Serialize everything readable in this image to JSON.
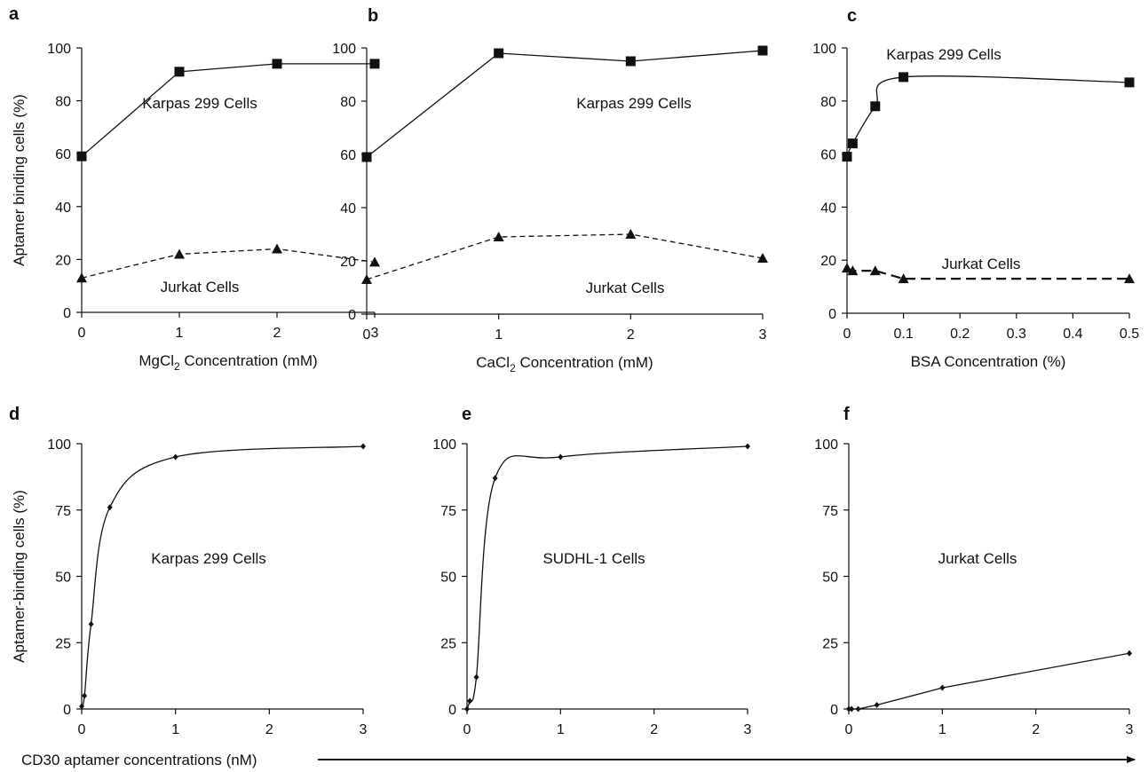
{
  "chart_data": [
    {
      "panel": "a",
      "type": "line",
      "x": [
        0,
        1,
        2,
        3
      ],
      "series": [
        {
          "name": "Karpas 299 Cells",
          "values": [
            59,
            91,
            94,
            94
          ],
          "marker": "square",
          "dash": false
        },
        {
          "name": "Jurkat Cells",
          "values": [
            13,
            22,
            24,
            19
          ],
          "marker": "triangle",
          "dash": true
        }
      ],
      "xlabel_prefix": "MgCl",
      "xlabel_sub": "2",
      "xlabel_suffix": " Concentration (mM)",
      "ylabel": "Aptamer binding cells (%)",
      "xlim": [
        0,
        3
      ],
      "ylim": [
        0,
        100
      ],
      "xticks": [
        "0",
        "1",
        "2",
        "3"
      ],
      "yticks": [
        "0",
        "20",
        "40",
        "60",
        "80",
        "100"
      ]
    },
    {
      "panel": "b",
      "type": "line",
      "x": [
        0,
        1,
        2,
        3
      ],
      "series": [
        {
          "name": "Karpas 299 Cells",
          "values": [
            59,
            98,
            95,
            99
          ],
          "marker": "square",
          "dash": false
        },
        {
          "name": "Jurkat Cells",
          "values": [
            13,
            29,
            30,
            21
          ],
          "marker": "triangle",
          "dash": true
        }
      ],
      "xlabel_prefix": "CaCl",
      "xlabel_sub": "2",
      "xlabel_suffix": " Concentration (mM)",
      "ylabel": "",
      "xlim": [
        0,
        3
      ],
      "ylim": [
        0,
        100
      ],
      "xticks": [
        "0",
        "1",
        "2",
        "3"
      ],
      "yticks": [
        "0",
        "20",
        "40",
        "60",
        "80",
        "100"
      ]
    },
    {
      "panel": "c",
      "type": "line",
      "x": [
        0,
        0.01,
        0.05,
        0.1,
        0.5
      ],
      "series": [
        {
          "name": "Karpas 299 Cells",
          "values": [
            59,
            64,
            78,
            89,
            87
          ],
          "marker": "square",
          "dash": false
        },
        {
          "name": "Jurkat Cells",
          "values": [
            17,
            16,
            16,
            13,
            13
          ],
          "marker": "triangle",
          "dash": true
        }
      ],
      "xlabel_prefix": "BSA Concentration (%)",
      "xlabel_sub": "",
      "xlabel_suffix": "",
      "ylabel": "",
      "xlim": [
        0,
        0.5
      ],
      "ylim": [
        0,
        100
      ],
      "xticks": [
        "0",
        "0.1",
        "0.2",
        "0.3",
        "0.4",
        "0.5"
      ],
      "yticks": [
        "0",
        "20",
        "40",
        "60",
        "80",
        "100"
      ]
    },
    {
      "panel": "d",
      "type": "line",
      "x": [
        0,
        0.03,
        0.1,
        0.3,
        1,
        3
      ],
      "series": [
        {
          "name": "Karpas 299 Cells",
          "values": [
            1,
            5,
            32,
            76,
            95,
            99
          ],
          "marker": "diamond",
          "dash": false
        }
      ],
      "ylabel": "Aptamer-binding cells (%)",
      "xlim": [
        0,
        3
      ],
      "ylim": [
        0,
        100
      ],
      "xticks": [
        "0",
        "1",
        "2",
        "3"
      ],
      "yticks": [
        "0",
        "25",
        "50",
        "75",
        "100"
      ]
    },
    {
      "panel": "e",
      "type": "line",
      "x": [
        0,
        0.03,
        0.1,
        0.3,
        1,
        3
      ],
      "series": [
        {
          "name": "SUDHL-1 Cells",
          "values": [
            0,
            3,
            12,
            87,
            95,
            99
          ],
          "marker": "diamond",
          "dash": false
        }
      ],
      "ylabel": "",
      "xlim": [
        0,
        3
      ],
      "ylim": [
        0,
        100
      ],
      "xticks": [
        "0",
        "1",
        "2",
        "3"
      ],
      "yticks": [
        "0",
        "25",
        "50",
        "75",
        "100"
      ]
    },
    {
      "panel": "f",
      "type": "line",
      "x": [
        0,
        0.03,
        0.1,
        0.3,
        1,
        3
      ],
      "series": [
        {
          "name": "Jurkat Cells",
          "values": [
            0,
            0,
            0,
            1.5,
            8,
            21
          ],
          "marker": "diamond",
          "dash": false
        }
      ],
      "ylabel": "",
      "xlim": [
        0,
        3
      ],
      "ylim": [
        0,
        100
      ],
      "xticks": [
        "0",
        "1",
        "2",
        "3"
      ],
      "yticks": [
        "0",
        "25",
        "50",
        "75",
        "100"
      ]
    }
  ],
  "shared_xlabel": "CD30 aptamer concentrations (nM)"
}
